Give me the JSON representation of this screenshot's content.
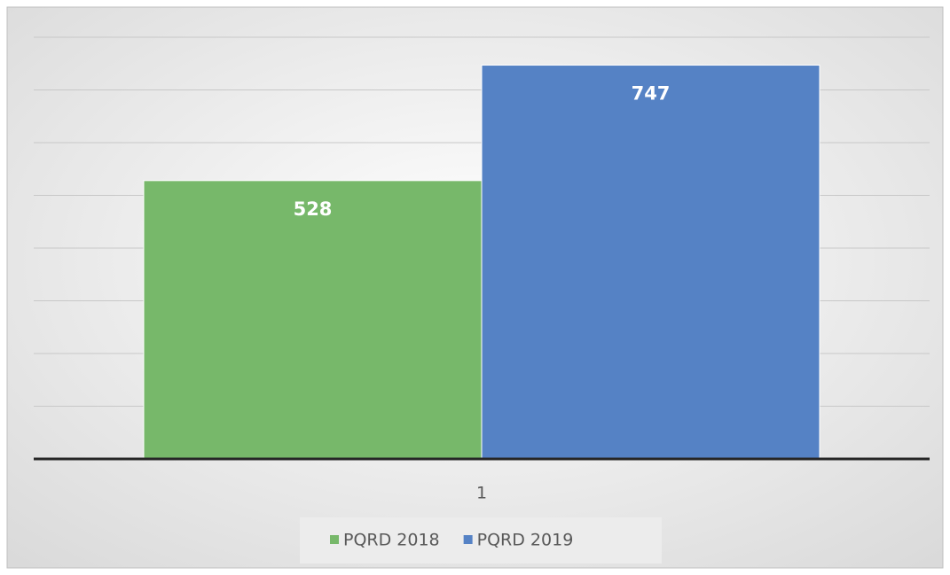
{
  "chart_data": {
    "type": "bar",
    "categories": [
      "1"
    ],
    "series": [
      {
        "name": "PQRD 2018",
        "color": "#77b86a",
        "values": [
          528
        ]
      },
      {
        "name": "PQRD 2019",
        "color": "#5582c5",
        "values": [
          747
        ]
      }
    ],
    "ylim": [
      0,
      800
    ],
    "yticks": [
      0,
      100,
      200,
      300,
      400,
      500,
      600,
      700,
      800
    ],
    "grid": true,
    "legend": "bottom"
  }
}
